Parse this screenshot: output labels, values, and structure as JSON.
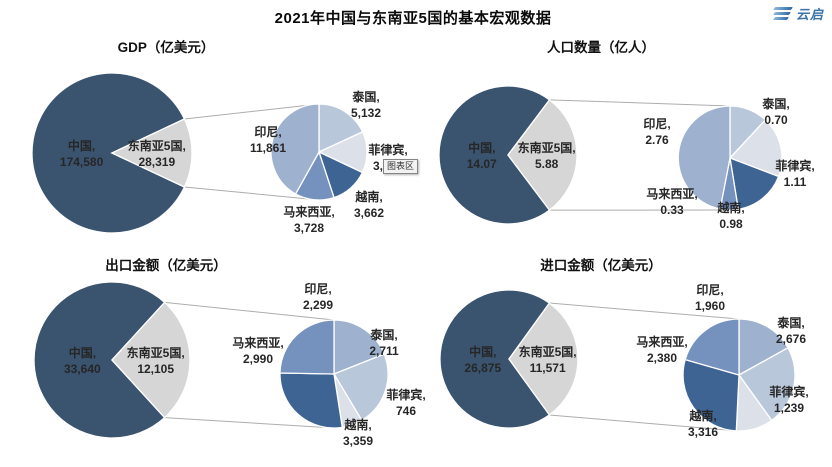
{
  "header": {
    "title": "2021年中国与东南亚5国的基本宏观数据",
    "logo_text": "云启"
  },
  "tooltip": {
    "label": "图表区"
  },
  "colors": {
    "china": "#3A5470",
    "sea5": "#D6D6D6",
    "label_dark": "#262626",
    "label_light": "#FFFFFF",
    "connector": "#ADADAD",
    "countries": {
      "泰国": "#B9C7DB",
      "菲律宾": "#DCE0E9",
      "越南": "#3E6494",
      "马来西亚": "#7591BD",
      "印尼": "#9EB1CF"
    }
  },
  "chart_data": [
    {
      "type": "pie-of-pie",
      "title": "GDP（亿美元）",
      "unit": "亿美元",
      "main": [
        {
          "label": "中国",
          "value": 174580,
          "display": "174,580"
        },
        {
          "label": "东南亚5国",
          "value": 28319,
          "display": "28,319"
        }
      ],
      "detail": [
        {
          "label": "泰国",
          "value": 5132,
          "display": "5,132"
        },
        {
          "label": "菲律宾",
          "value": 3936,
          "display": "3,936",
          "partially_hidden_by_tooltip": true
        },
        {
          "label": "越南",
          "value": 3662,
          "display": "3,662"
        },
        {
          "label": "马来西亚",
          "value": 3728,
          "display": "3,728"
        },
        {
          "label": "印尼",
          "value": 11861,
          "display": "11,861"
        }
      ]
    },
    {
      "type": "pie-of-pie",
      "title": "人口数量（亿人）",
      "unit": "亿人",
      "main": [
        {
          "label": "中国",
          "value": 14.07,
          "display": "14.07"
        },
        {
          "label": "东南亚5国",
          "value": 5.88,
          "display": "5.88"
        }
      ],
      "detail": [
        {
          "label": "泰国",
          "value": 0.7,
          "display": "0.70"
        },
        {
          "label": "菲律宾",
          "value": 1.11,
          "display": "1.11"
        },
        {
          "label": "越南",
          "value": 0.98,
          "display": "0.98"
        },
        {
          "label": "马来西亚",
          "value": 0.33,
          "display": "0.33"
        },
        {
          "label": "印尼",
          "value": 2.76,
          "display": "2.76"
        }
      ]
    },
    {
      "type": "pie-of-pie",
      "title": "出口金额（亿美元）",
      "unit": "亿美元",
      "main": [
        {
          "label": "中国",
          "value": 33640,
          "display": "33,640"
        },
        {
          "label": "东南亚5国",
          "value": 12105,
          "display": "12,105"
        }
      ],
      "detail": [
        {
          "label": "印尼",
          "value": 2299,
          "display": "2,299"
        },
        {
          "label": "泰国",
          "value": 2711,
          "display": "2,711"
        },
        {
          "label": "菲律宾",
          "value": 746,
          "display": "746"
        },
        {
          "label": "越南",
          "value": 3359,
          "display": "3,359"
        },
        {
          "label": "马来西亚",
          "value": 2990,
          "display": "2,990"
        }
      ]
    },
    {
      "type": "pie-of-pie",
      "title": "进口金额（亿美元）",
      "unit": "亿美元",
      "main": [
        {
          "label": "中国",
          "value": 26875,
          "display": "26,875"
        },
        {
          "label": "东南亚5国",
          "value": 11571,
          "display": "11,571"
        }
      ],
      "detail": [
        {
          "label": "印尼",
          "value": 1960,
          "display": "1,960"
        },
        {
          "label": "泰国",
          "value": 2676,
          "display": "2,676"
        },
        {
          "label": "菲律宾",
          "value": 1239,
          "display": "1,239"
        },
        {
          "label": "越南",
          "value": 3316,
          "display": "3,316"
        },
        {
          "label": "马来西亚",
          "value": 2380,
          "display": "2,380"
        }
      ]
    }
  ]
}
